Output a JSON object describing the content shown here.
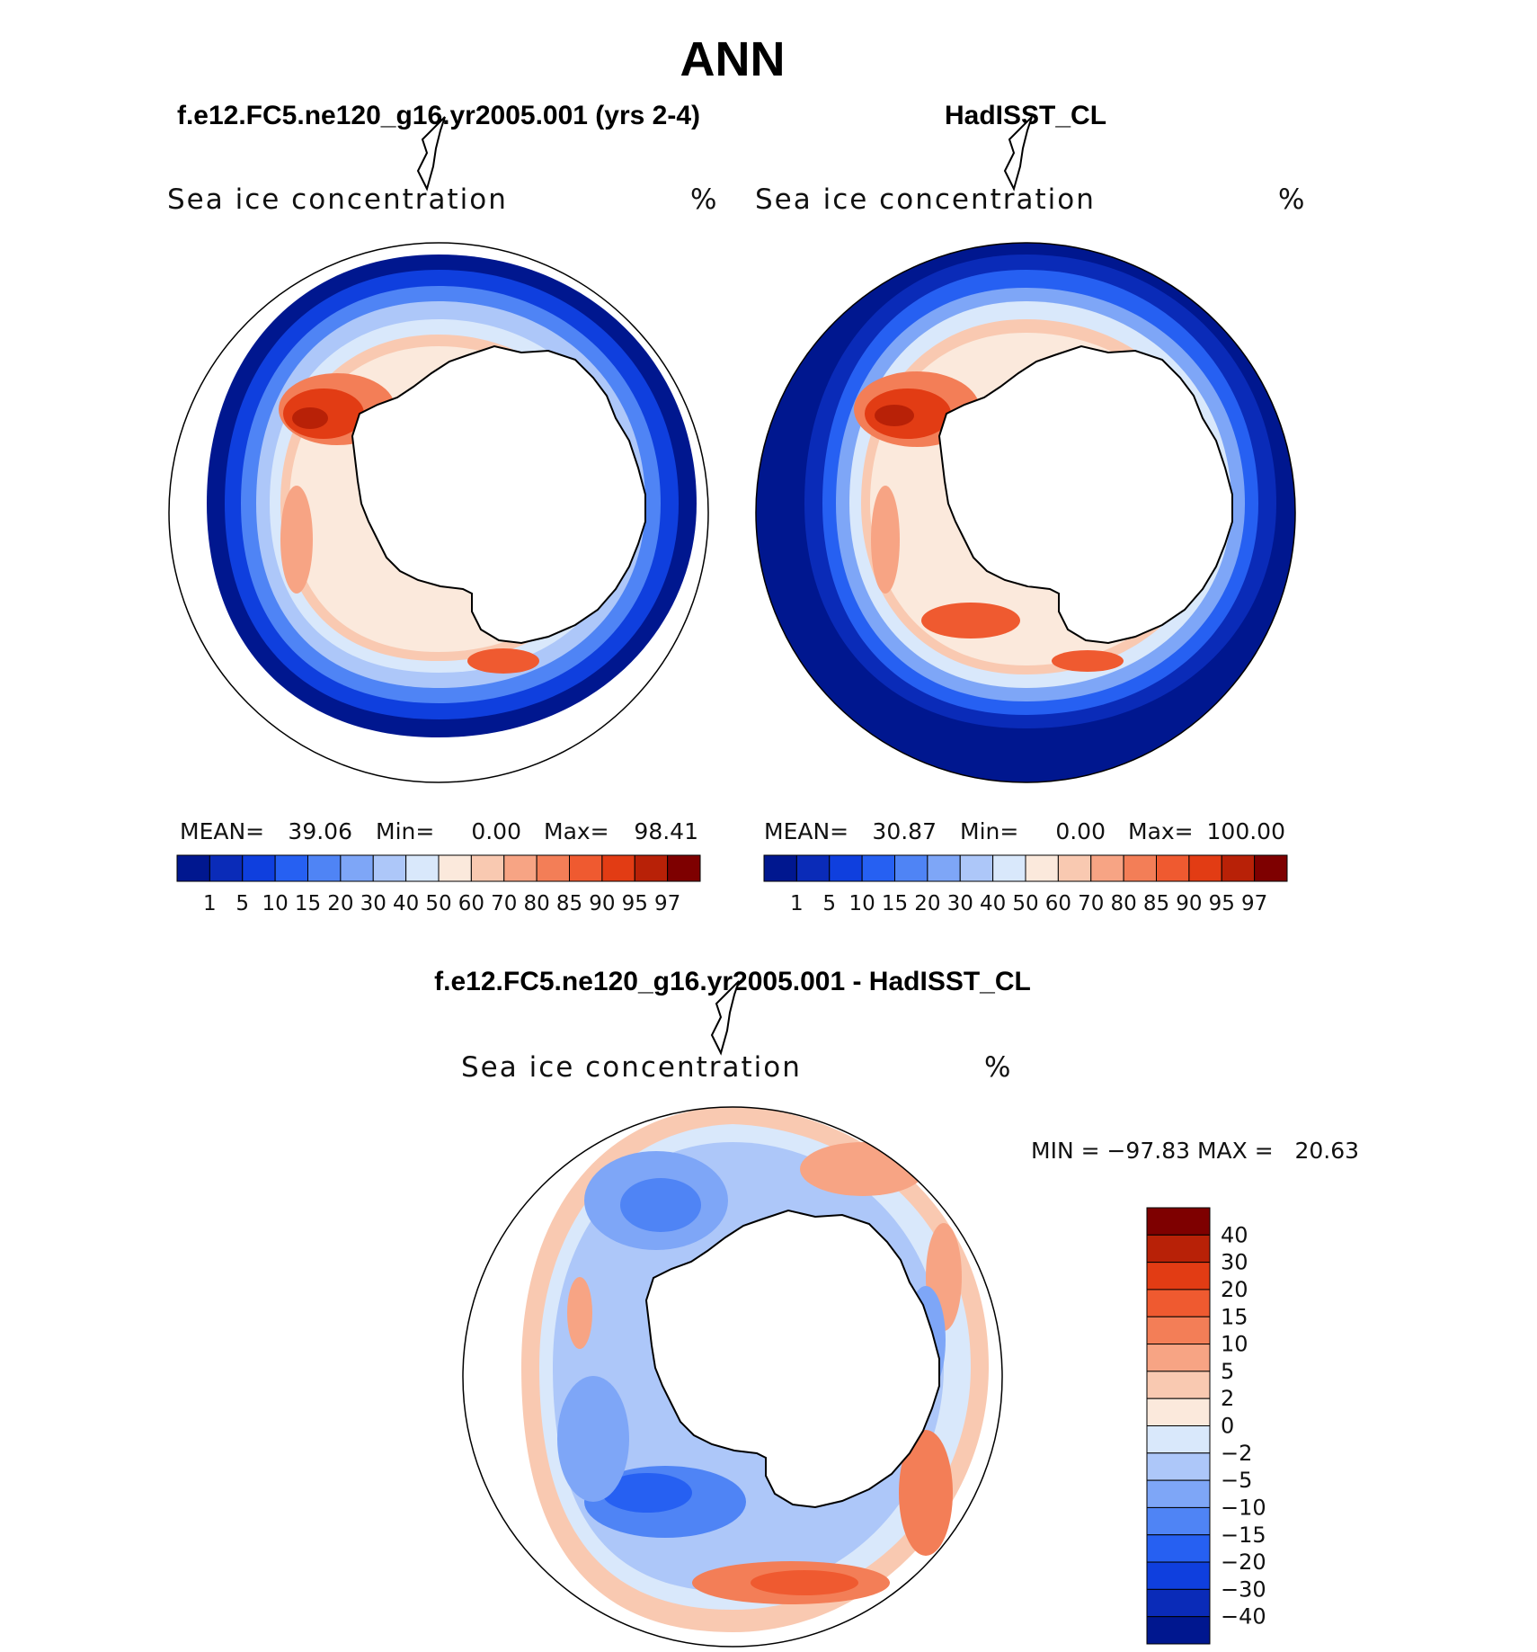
{
  "figure": {
    "title": "ANN",
    "panel_titles": {
      "model": "f.e12.FC5.ne120_g16.yr2005.001 (yrs 2-4)",
      "obs": "HadISST_CL",
      "diff": "f.e12.FC5.ne120_g16.yr2005.001 - HadISST_CL"
    },
    "variable": "Sea ice concentration",
    "units": "%"
  },
  "colors": {
    "ice_scale": [
      "#00178f",
      "#0a2bb8",
      "#0f3fde",
      "#2660f2",
      "#4f84f5",
      "#7ea6f7",
      "#adc7f9",
      "#d9e8fb",
      "#fbe9dc",
      "#f9c9b1",
      "#f7a484",
      "#f37e57",
      "#ef5a30",
      "#e23c14",
      "#b82107",
      "#7e0000"
    ],
    "diff_scale": [
      "#00178f",
      "#0a2bb8",
      "#0f3fde",
      "#2660f2",
      "#4f84f5",
      "#7ea6f7",
      "#adc7f9",
      "#d9e8fb",
      "#fbe9dc",
      "#f9c9b1",
      "#f7a484",
      "#f37e57",
      "#ef5a30",
      "#e23c14",
      "#b82107",
      "#7e0000"
    ],
    "land": "#ffffff",
    "coast": "#000000",
    "ocean_outside": "#00178f"
  },
  "panels": [
    {
      "id": "model",
      "stats": {
        "mean_label": "MEAN=",
        "mean": "39.06",
        "min_label": "Min=",
        "min": "0.00",
        "max_label": "Max=",
        "max": "98.41"
      }
    },
    {
      "id": "obs",
      "stats": {
        "mean_label": "MEAN=",
        "mean": "30.87",
        "min_label": "Min=",
        "min": "0.00",
        "max_label": "Max=",
        "max": "100.00"
      }
    },
    {
      "id": "diff",
      "stats": {
        "text": "MIN = −97.83 MAX =   20.63"
      }
    }
  ],
  "ice_colorbar_labels": [
    "1",
    "5",
    "10",
    "15",
    "20",
    "30",
    "40",
    "50",
    "60",
    "70",
    "80",
    "85",
    "90",
    "95",
    "97"
  ],
  "diff_colorbar_labels": [
    "40",
    "30",
    "20",
    "15",
    "10",
    "5",
    "2",
    "0",
    "−2",
    "−5",
    "−10",
    "−15",
    "−20",
    "−30",
    "−40"
  ]
}
